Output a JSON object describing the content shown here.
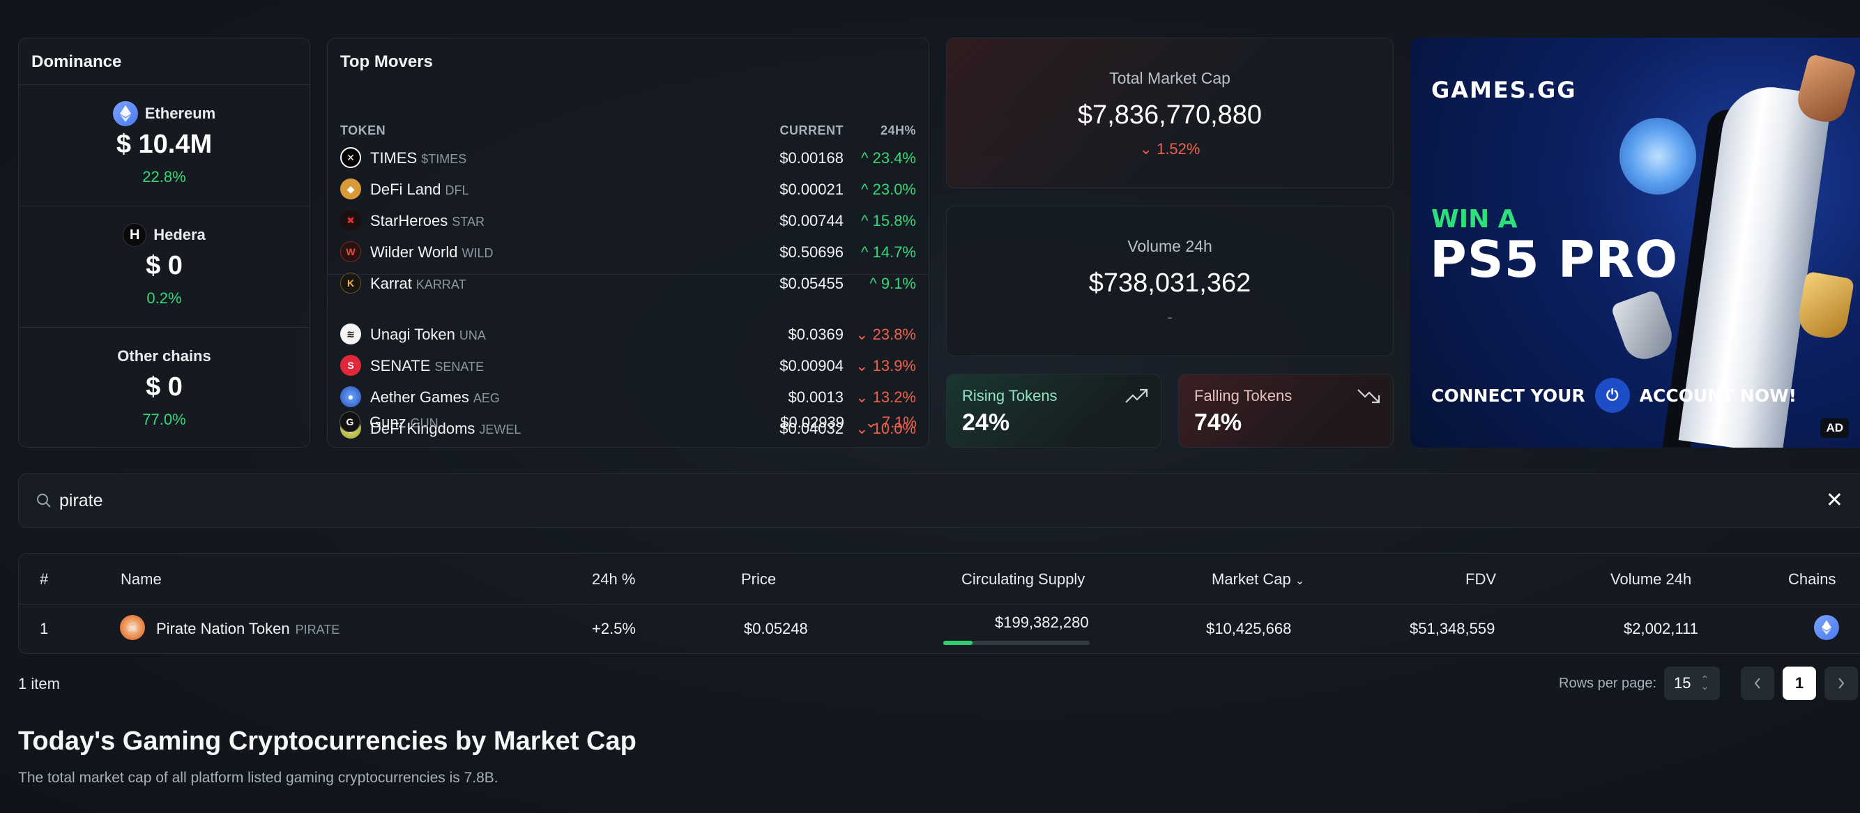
{
  "dominance": {
    "title": "Dominance",
    "items": [
      {
        "name": "Ethereum",
        "value": "$ 10.4M",
        "pct": "22.8%",
        "icon": "ethereum-icon"
      },
      {
        "name": "Hedera",
        "value": "$ 0",
        "pct": "0.2%",
        "icon": "hedera-icon"
      },
      {
        "name": "Other chains",
        "value": "$ 0",
        "pct": "77.0%"
      }
    ]
  },
  "movers": {
    "title": "Top Movers",
    "col_token": "TOKEN",
    "col_current": "CURRENT",
    "col_change": "24H%",
    "gainers": [
      {
        "name": "TIMES",
        "symbol": "$TIMES",
        "price": "$0.00168",
        "change": "23.4%"
      },
      {
        "name": "DeFi Land",
        "symbol": "DFL",
        "price": "$0.00021",
        "change": "23.0%"
      },
      {
        "name": "StarHeroes",
        "symbol": "STAR",
        "price": "$0.00744",
        "change": "15.8%"
      },
      {
        "name": "Wilder World",
        "symbol": "WILD",
        "price": "$0.50696",
        "change": "14.7%"
      },
      {
        "name": "Karrat",
        "symbol": "KARRAT",
        "price": "$0.05455",
        "change": "9.1%"
      }
    ],
    "losers": [
      {
        "name": "Unagi Token",
        "symbol": "UNA",
        "price": "$0.0369",
        "change": "23.8%"
      },
      {
        "name": "SENATE",
        "symbol": "SENATE",
        "price": "$0.00904",
        "change": "13.9%"
      },
      {
        "name": "Aether Games",
        "symbol": "AEG",
        "price": "$0.0013",
        "change": "13.2%"
      },
      {
        "name": "DeFi Kingdoms",
        "symbol": "JEWEL",
        "price": "$0.04032",
        "change": "10.0%"
      },
      {
        "name": "Gunz",
        "symbol": "GUN",
        "price": "$0.02939",
        "change": "7.1%"
      }
    ]
  },
  "stats": {
    "market_cap": {
      "label": "Total Market Cap",
      "value": "$7,836,770,880",
      "change": "1.52%"
    },
    "volume": {
      "label": "Volume 24h",
      "value": "$738,031,362",
      "change": "-"
    },
    "rising": {
      "label": "Rising Tokens",
      "value": "24%"
    },
    "falling": {
      "label": "Falling Tokens",
      "value": "74%"
    }
  },
  "ad": {
    "brand": "GAMES.GG",
    "headline_1": "WIN A",
    "headline_2": "PS5 PRO",
    "cta_1": "CONNECT YOUR",
    "cta_2": "ACCOUNT NOW!",
    "tag": "AD"
  },
  "search": {
    "value": "pirate",
    "clear": "✕"
  },
  "table": {
    "headers": {
      "rank": "#",
      "name": "Name",
      "change": "24h %",
      "price": "Price",
      "supply": "Circulating Supply",
      "mcap": "Market Cap",
      "fdv": "FDV",
      "volume": "Volume 24h",
      "chains": "Chains"
    },
    "rows": [
      {
        "rank": "1",
        "name": "Pirate Nation Token",
        "symbol": "PIRATE",
        "change": "+2.5%",
        "price": "$0.05248",
        "supply": "$199,382,280",
        "supply_progress": 0.2,
        "mcap": "$10,425,668",
        "fdv": "$51,348,559",
        "volume": "$2,002,111",
        "chain_icon": "ethereum-icon"
      }
    ]
  },
  "footer": {
    "count": "1 item",
    "rows_label": "Rows per page:",
    "rows_value": "15",
    "current_page": "1"
  },
  "intro": {
    "heading": "Today's Gaming Cryptocurrencies by Market Cap",
    "text": "The total market cap of all platform listed gaming cryptocurrencies is 7.8B."
  },
  "colors": {
    "up": "#37d67a",
    "down": "#f0614a",
    "accent_ad_green": "#2de07a"
  }
}
